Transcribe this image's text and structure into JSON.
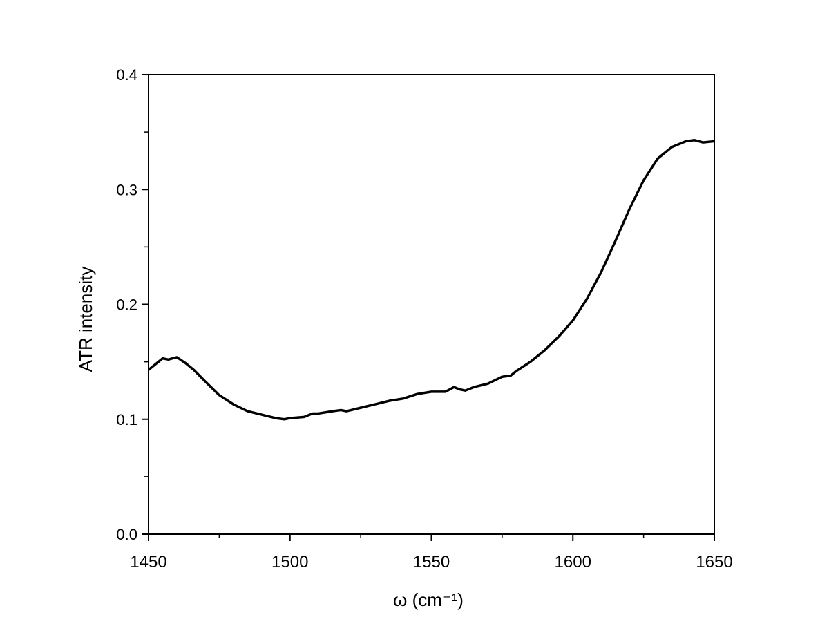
{
  "chart_data": {
    "type": "line",
    "x_label": "ω (cm⁻¹)",
    "y_label": "ATR intensity",
    "xlim": [
      1450,
      1650
    ],
    "ylim": [
      0,
      0.4
    ],
    "xticks": [
      1450,
      1500,
      1550,
      1600,
      1650
    ],
    "xminorticks": [
      1475,
      1525,
      1575,
      1625
    ],
    "yticks": [
      {
        "value": 0,
        "label": "0.0"
      },
      0.1,
      0.2,
      0.3,
      0.4
    ],
    "yminorticks": [
      0.05,
      0.15,
      0.25,
      0.35
    ],
    "series": [
      {
        "color": "#000000",
        "x": [
          1450,
          1452,
          1455,
          1457,
          1460,
          1463,
          1466,
          1470,
          1475,
          1480,
          1485,
          1490,
          1495,
          1498,
          1500,
          1505,
          1508,
          1510,
          1515,
          1518,
          1520,
          1525,
          1530,
          1535,
          1540,
          1545,
          1550,
          1555,
          1558,
          1560,
          1562,
          1565,
          1570,
          1575,
          1578,
          1580,
          1585,
          1590,
          1595,
          1600,
          1605,
          1610,
          1615,
          1620,
          1625,
          1630,
          1635,
          1640,
          1643,
          1646,
          1650
        ],
        "values": [
          0.143,
          0.147,
          0.153,
          0.152,
          0.154,
          0.149,
          0.143,
          0.133,
          0.121,
          0.113,
          0.107,
          0.104,
          0.101,
          0.1,
          0.101,
          0.102,
          0.105,
          0.105,
          0.107,
          0.108,
          0.107,
          0.11,
          0.113,
          0.116,
          0.118,
          0.122,
          0.124,
          0.124,
          0.128,
          0.126,
          0.125,
          0.128,
          0.131,
          0.137,
          0.138,
          0.142,
          0.15,
          0.16,
          0.172,
          0.186,
          0.205,
          0.228,
          0.255,
          0.283,
          0.308,
          0.327,
          0.337,
          0.342,
          0.343,
          0.341,
          0.342
        ]
      }
    ]
  }
}
